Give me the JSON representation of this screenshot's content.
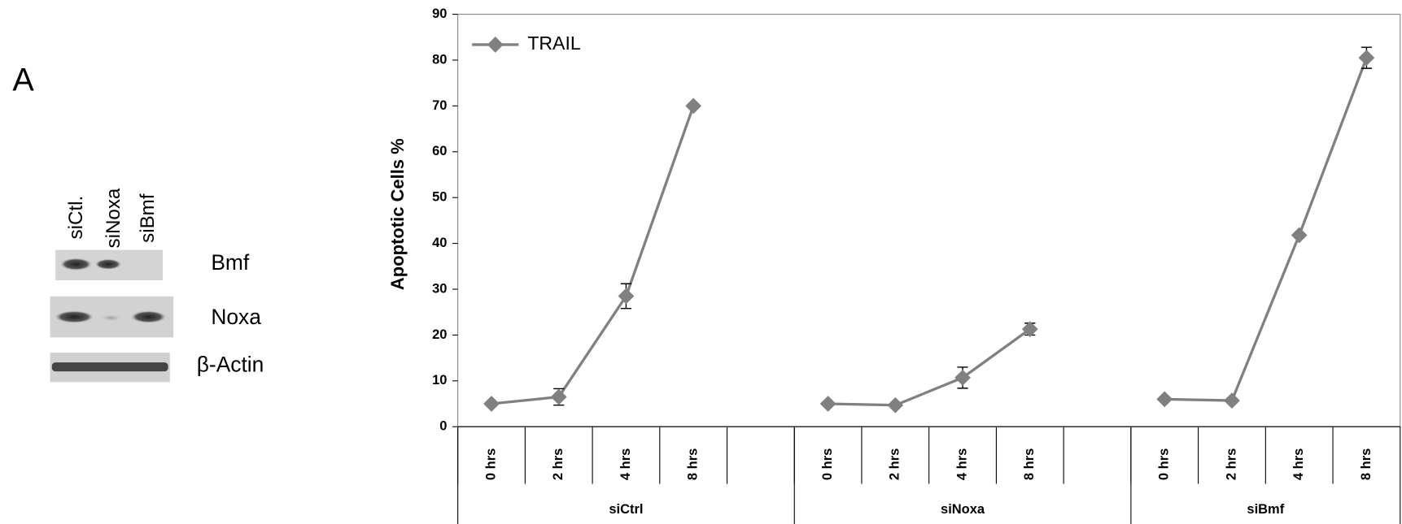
{
  "blot": {
    "panel_label": "A",
    "lanes": [
      "siCtl.",
      "siNoxa",
      "siBmf"
    ],
    "rows": [
      "Bmf",
      "Noxa",
      "β-Actin"
    ]
  },
  "chart_data": {
    "type": "line",
    "y_label": "Apoptotic Cells %",
    "categories": [
      "0 hrs",
      "2 hrs",
      "4 hrs",
      "8 hrs",
      null,
      "0 hrs",
      "2 hrs",
      "4 hrs",
      "8 hrs",
      null,
      "0 hrs",
      "2 hrs",
      "4 hrs",
      "8 hrs"
    ],
    "groups": [
      "siCtrl",
      "siNoxa",
      "siBmf"
    ],
    "series": [
      {
        "name": "TRAIL",
        "color": "#808080",
        "values": [
          5,
          6.5,
          28.5,
          70,
          null,
          5,
          4.7,
          10.7,
          21.3,
          null,
          6,
          5.7,
          41.8,
          80.5
        ],
        "errors": [
          0.5,
          1.8,
          2.7,
          0.3,
          null,
          0.3,
          0.3,
          2.3,
          1.3,
          null,
          0.3,
          0.5,
          0.5,
          2.3
        ]
      }
    ],
    "ylim": [
      0,
      90
    ],
    "yticks": [
      0,
      10,
      20,
      30,
      40,
      50,
      60,
      70,
      80,
      90
    ],
    "legend": "upper left"
  }
}
